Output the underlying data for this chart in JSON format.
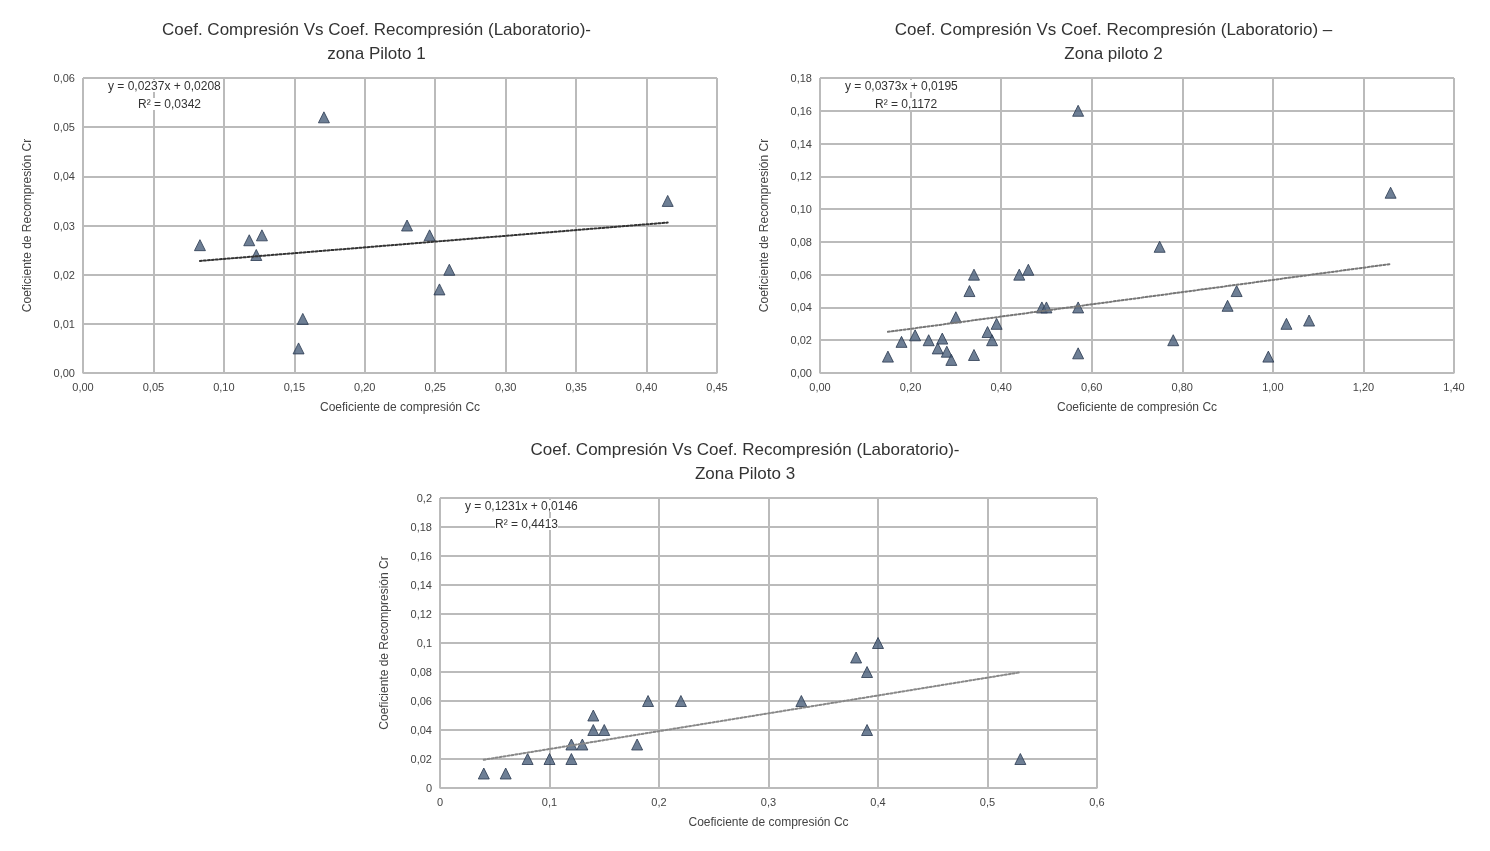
{
  "chart_data": [
    {
      "type": "scatter",
      "title": "Coef. Compresión Vs Coef. Recompresión (Laboratorio)-\nzona Piloto 1",
      "xlabel": "Coeficiente de compresión Cc",
      "ylabel": "Coeficiente de Recompresión Cr",
      "annotations": [
        "y = 0,0237x + 0,0208",
        "R² = 0,0342"
      ],
      "grid": true,
      "marker": "triangle",
      "xlim": [
        0,
        0.45
      ],
      "xticks": [
        {
          "value": 0,
          "label": "0,00"
        },
        {
          "value": 0.05,
          "label": "0,05"
        },
        {
          "value": 0.1,
          "label": "0,10"
        },
        {
          "value": 0.15,
          "label": "0,15"
        },
        {
          "value": 0.2,
          "label": "0,20"
        },
        {
          "value": 0.25,
          "label": "0,25"
        },
        {
          "value": 0.3,
          "label": "0,30"
        },
        {
          "value": 0.35,
          "label": "0,35"
        },
        {
          "value": 0.4,
          "label": "0,40"
        },
        {
          "value": 0.45,
          "label": "0,45"
        }
      ],
      "ylim": [
        0,
        0.06
      ],
      "yticks": [
        {
          "value": 0,
          "label": "0,00"
        },
        {
          "value": 0.01,
          "label": "0,01"
        },
        {
          "value": 0.02,
          "label": "0,02"
        },
        {
          "value": 0.03,
          "label": "0,03"
        },
        {
          "value": 0.04,
          "label": "0,04"
        },
        {
          "value": 0.05,
          "label": "0,05"
        },
        {
          "value": 0.06,
          "label": "0,06"
        }
      ],
      "series": [
        {
          "color": "#4a5f7a",
          "x": [
            0.083,
            0.118,
            0.123,
            0.127,
            0.153,
            0.156,
            0.171,
            0.23,
            0.246,
            0.253,
            0.26,
            0.415
          ],
          "values": [
            0.026,
            0.027,
            0.024,
            0.028,
            0.005,
            0.011,
            0.052,
            0.03,
            0.028,
            0.017,
            0.021,
            0.035
          ]
        },
        {
          "type": "line",
          "color": "#333333",
          "line_style": "dotted",
          "marker": "none",
          "x": [
            0.083,
            0.415
          ],
          "values": [
            0.0228,
            0.0306
          ]
        }
      ]
    },
    {
      "type": "scatter",
      "title": "Coef. Compresión Vs Coef. Recompresión (Laboratorio) –\nZona piloto 2",
      "xlabel": "Coeficiente de compresión Cc",
      "ylabel": "Coeficiente de Recompresión Cr",
      "annotations": [
        "y = 0,0373x + 0,0195",
        "R² = 0,1172"
      ],
      "grid": true,
      "marker": "triangle",
      "xlim": [
        0,
        1.4
      ],
      "xticks": [
        {
          "value": 0,
          "label": "0,00"
        },
        {
          "value": 0.2,
          "label": "0,20"
        },
        {
          "value": 0.4,
          "label": "0,40"
        },
        {
          "value": 0.6,
          "label": "0,60"
        },
        {
          "value": 0.8,
          "label": "0,80"
        },
        {
          "value": 1.0,
          "label": "1,00"
        },
        {
          "value": 1.2,
          "label": "1,20"
        },
        {
          "value": 1.4,
          "label": "1,40"
        }
      ],
      "ylim": [
        0,
        0.18
      ],
      "yticks": [
        {
          "value": 0,
          "label": "0,00"
        },
        {
          "value": 0.02,
          "label": "0,02"
        },
        {
          "value": 0.04,
          "label": "0,04"
        },
        {
          "value": 0.06,
          "label": "0,06"
        },
        {
          "value": 0.08,
          "label": "0,08"
        },
        {
          "value": 0.1,
          "label": "0,10"
        },
        {
          "value": 0.12,
          "label": "0,12"
        },
        {
          "value": 0.14,
          "label": "0,14"
        },
        {
          "value": 0.16,
          "label": "0,16"
        },
        {
          "value": 0.18,
          "label": "0,18"
        }
      ],
      "series": [
        {
          "color": "#4a5f7a",
          "x": [
            0.15,
            0.18,
            0.21,
            0.24,
            0.26,
            0.27,
            0.28,
            0.29,
            0.3,
            0.33,
            0.34,
            0.34,
            0.37,
            0.38,
            0.39,
            0.44,
            0.46,
            0.49,
            0.5,
            0.57,
            0.57,
            0.57,
            0.75,
            0.78,
            0.9,
            0.92,
            0.99,
            1.03,
            1.08,
            1.26
          ],
          "values": [
            0.01,
            0.019,
            0.023,
            0.02,
            0.015,
            0.021,
            0.013,
            0.008,
            0.034,
            0.05,
            0.06,
            0.011,
            0.025,
            0.02,
            0.03,
            0.06,
            0.063,
            0.04,
            0.04,
            0.16,
            0.04,
            0.012,
            0.077,
            0.02,
            0.041,
            0.05,
            0.01,
            0.03,
            0.032,
            0.11
          ]
        },
        {
          "type": "line",
          "color": "#777777",
          "line_style": "dotted",
          "marker": "none",
          "x": [
            0.15,
            1.26
          ],
          "values": [
            0.0251,
            0.0665
          ]
        }
      ]
    },
    {
      "type": "scatter",
      "title": "Coef. Compresión Vs Coef. Recompresión (Laboratorio)-\nZona Piloto 3",
      "xlabel": "Coeficiente de compresión Cc",
      "ylabel": "Coeficiente de Recompresión Cr",
      "annotations": [
        "y = 0,1231x + 0,0146",
        "R² = 0,4413"
      ],
      "grid": true,
      "marker": "triangle",
      "xlim": [
        0,
        0.6
      ],
      "xticks": [
        {
          "value": 0,
          "label": "0"
        },
        {
          "value": 0.1,
          "label": "0,1"
        },
        {
          "value": 0.2,
          "label": "0,2"
        },
        {
          "value": 0.3,
          "label": "0,3"
        },
        {
          "value": 0.4,
          "label": "0,4"
        },
        {
          "value": 0.5,
          "label": "0,5"
        },
        {
          "value": 0.6,
          "label": "0,6"
        }
      ],
      "ylim": [
        0,
        0.2
      ],
      "yticks": [
        {
          "value": 0,
          "label": "0"
        },
        {
          "value": 0.02,
          "label": "0,02"
        },
        {
          "value": 0.04,
          "label": "0,04"
        },
        {
          "value": 0.06,
          "label": "0,06"
        },
        {
          "value": 0.08,
          "label": "0,08"
        },
        {
          "value": 0.1,
          "label": "0,1"
        },
        {
          "value": 0.12,
          "label": "0,12"
        },
        {
          "value": 0.14,
          "label": "0,14"
        },
        {
          "value": 0.16,
          "label": "0,16"
        },
        {
          "value": 0.18,
          "label": "0,18"
        },
        {
          "value": 0.2,
          "label": "0,2"
        }
      ],
      "series": [
        {
          "color": "#4a5f7a",
          "x": [
            0.04,
            0.06,
            0.08,
            0.1,
            0.12,
            0.12,
            0.13,
            0.14,
            0.14,
            0.15,
            0.18,
            0.19,
            0.22,
            0.33,
            0.38,
            0.39,
            0.39,
            0.4,
            0.53
          ],
          "values": [
            0.01,
            0.01,
            0.02,
            0.02,
            0.03,
            0.02,
            0.03,
            0.05,
            0.04,
            0.04,
            0.03,
            0.06,
            0.06,
            0.06,
            0.09,
            0.08,
            0.04,
            0.1,
            0.02
          ]
        },
        {
          "type": "line",
          "color": "#888888",
          "line_style": "dotted",
          "marker": "none",
          "x": [
            0.04,
            0.53
          ],
          "values": [
            0.0195,
            0.0798
          ]
        }
      ]
    }
  ]
}
